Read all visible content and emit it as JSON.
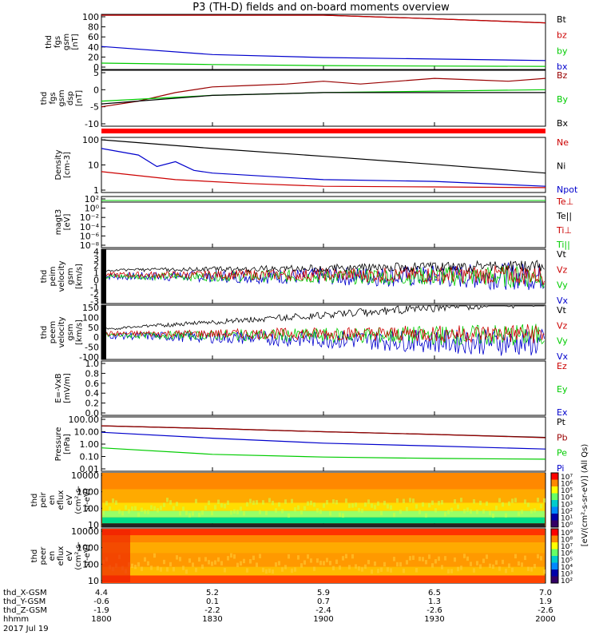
{
  "title": "P3 (TH-D) fields and on-board moments overview",
  "colors": {
    "black": "#000000",
    "red": "#cc0000",
    "blue": "#0000cc",
    "green": "#00cc00",
    "darkred": "#990000"
  },
  "chart_data": [
    {
      "type": "line",
      "panel": "fgs_gsm",
      "ylabel": [
        "thd",
        "fgs",
        "gsm",
        "[nT]"
      ],
      "ylim": [
        0,
        100
      ],
      "yticks": [
        "100",
        "80",
        "60",
        "40",
        "20",
        "0"
      ],
      "series": [
        {
          "name": "Bt",
          "color": "#000000",
          "x": [
            1800,
            1830,
            1900,
            1930,
            2000
          ],
          "values": [
            115,
            110,
            104,
            96,
            88
          ]
        },
        {
          "name": "bz",
          "color": "#cc0000",
          "x": [
            1800,
            1830,
            1900,
            1930,
            2000
          ],
          "values": [
            115,
            110,
            104,
            96,
            88
          ]
        },
        {
          "name": "by",
          "color": "#00cc00",
          "x": [
            1800,
            1830,
            1900,
            1930,
            2000
          ],
          "values": [
            8,
            5,
            3,
            2,
            1.5
          ]
        },
        {
          "name": "bx",
          "color": "#0000cc",
          "x": [
            1800,
            1830,
            1900,
            1930,
            2000
          ],
          "values": [
            41,
            25,
            19,
            16,
            13
          ]
        }
      ]
    },
    {
      "type": "line",
      "panel": "fgs_gsm_dsp",
      "ylabel": [
        "thd",
        "fgs",
        "gsm",
        "dsp",
        "[nT]"
      ],
      "ylim": [
        -12,
        6
      ],
      "yticks": [
        "5",
        "0",
        "-5",
        "-10"
      ],
      "series": [
        {
          "name": "Bz",
          "color": "#990000",
          "x": [
            1800,
            1810,
            1820,
            1830,
            1840,
            1850,
            1900,
            1910,
            1920,
            1930,
            1940,
            1950,
            2000
          ],
          "values": [
            -6,
            -4,
            -1,
            1,
            1.5,
            2,
            3,
            2,
            3,
            4,
            3.5,
            3,
            4
          ]
        },
        {
          "name": "By",
          "color": "#00cc00",
          "x": [
            1800,
            1830,
            1900,
            1930,
            2000
          ],
          "values": [
            -4,
            -2,
            -1,
            -0.5,
            0
          ]
        },
        {
          "name": "Bx",
          "color": "#000000",
          "x": [
            1800,
            1830,
            1900,
            1930,
            2000
          ],
          "values": [
            -5,
            -2,
            -1,
            -1,
            -1
          ]
        }
      ]
    },
    {
      "type": "line",
      "panel": "density",
      "ylabel": [
        "Density",
        "[cm-3]"
      ],
      "yscale": "log",
      "ylim": [
        1,
        200
      ],
      "yticks": [
        "100",
        "10",
        "1"
      ],
      "series": [
        {
          "name": "Ne",
          "color": "#cc0000",
          "x": [
            1800,
            1820,
            1840,
            1900,
            1930,
            2000
          ],
          "values": [
            7,
            3,
            2,
            1.5,
            1.4,
            1.3
          ]
        },
        {
          "name": "Ni",
          "color": "#000000",
          "x": [
            1800,
            1830,
            1900,
            1930,
            2000
          ],
          "values": [
            200,
            80,
            35,
            15,
            6
          ]
        },
        {
          "name": "Npot",
          "color": "#0000cc",
          "x": [
            1800,
            1810,
            1815,
            1820,
            1825,
            1830,
            1900,
            1930,
            2000
          ],
          "values": [
            80,
            40,
            12,
            20,
            8,
            6,
            3,
            2.5,
            1.5
          ]
        }
      ]
    },
    {
      "type": "line",
      "panel": "temperature",
      "ylabel": [
        "magt3",
        "[eV]"
      ],
      "yscale": "log",
      "yticks": [
        "10²",
        "10⁰",
        "10⁻²",
        "10⁻⁴",
        "10⁻⁶",
        "10⁻⁸"
      ],
      "series": [
        {
          "name": "Te⊥",
          "color": "#cc0000"
        },
        {
          "name": "Te||",
          "color": "#000000"
        },
        {
          "name": "Ti⊥",
          "color": "#cc0000"
        },
        {
          "name": "Ti||",
          "color": "#00cc00"
        }
      ]
    },
    {
      "type": "line",
      "panel": "peim_velocity",
      "ylabel": [
        "thd",
        "peim",
        "velocity",
        "gsm",
        "[km/s]"
      ],
      "ylim": [
        -4,
        4
      ],
      "yticks": [
        "4",
        "3",
        "2",
        "1",
        "0",
        "-1",
        "-2",
        "-3"
      ],
      "series": [
        {
          "name": "Vt",
          "color": "#000000"
        },
        {
          "name": "Vz",
          "color": "#cc0000"
        },
        {
          "name": "Vy",
          "color": "#00cc00"
        },
        {
          "name": "Vx",
          "color": "#0000cc"
        }
      ]
    },
    {
      "type": "line",
      "panel": "peem_velocity",
      "ylabel": [
        "thd",
        "peem",
        "velocity",
        "gsm",
        "[km/s]"
      ],
      "ylim": [
        -100,
        150
      ],
      "yticks": [
        "150",
        "100",
        "50",
        "0",
        "-50",
        "-100"
      ],
      "series": [
        {
          "name": "Vt",
          "color": "#000000"
        },
        {
          "name": "Vz",
          "color": "#cc0000"
        },
        {
          "name": "Vy",
          "color": "#00cc00"
        },
        {
          "name": "Vx",
          "color": "#0000cc"
        }
      ]
    },
    {
      "type": "line",
      "panel": "efield",
      "ylabel": [
        "E=-VxB",
        "[mV/m]"
      ],
      "ylim": [
        0,
        1
      ],
      "yticks": [
        "1.0",
        "0.8",
        "0.6",
        "0.4",
        "0.2",
        "0.0"
      ],
      "series": [
        {
          "name": "Ez",
          "color": "#cc0000"
        },
        {
          "name": "Ey",
          "color": "#00cc00"
        },
        {
          "name": "Ex",
          "color": "#0000cc"
        }
      ]
    },
    {
      "type": "line",
      "panel": "pressure",
      "ylabel": [
        "Pressure",
        "[nPa]"
      ],
      "yscale": "log",
      "ylim": [
        0.01,
        100
      ],
      "yticks": [
        "100.00",
        "10.00",
        "1.00",
        "0.10",
        "0.01"
      ],
      "series": [
        {
          "name": "Pt",
          "color": "#000000",
          "x": [
            1800,
            1830,
            1900,
            1930,
            2000
          ],
          "values": [
            30,
            18,
            10,
            6,
            3.5
          ]
        },
        {
          "name": "Pb",
          "color": "#990000",
          "x": [
            1800,
            1830,
            1900,
            1930,
            2000
          ],
          "values": [
            30,
            18,
            10,
            6,
            3.3
          ]
        },
        {
          "name": "Pe",
          "color": "#00cc00",
          "x": [
            1800,
            1830,
            1900,
            1930,
            2000
          ],
          "values": [
            0.5,
            0.15,
            0.09,
            0.07,
            0.06
          ]
        },
        {
          "name": "Pi",
          "color": "#0000cc",
          "x": [
            1800,
            1830,
            1900,
            1930,
            2000
          ],
          "values": [
            9,
            3,
            1.2,
            0.7,
            0.4
          ]
        }
      ]
    },
    {
      "type": "heatmap",
      "panel": "peir_en_eflux",
      "ylabel": [
        "thd",
        "peir",
        "en",
        "eflux",
        "eV",
        "(cm²-s-",
        "sr-eV)"
      ],
      "yscale": "log",
      "yticks": [
        "10000",
        "1000",
        "100",
        "10"
      ],
      "colorbar": {
        "label": "[eV/(cm²-s-sr-eV)] (All Qs)",
        "ticks": [
          "10⁷",
          "10⁶",
          "10⁵",
          "10⁴",
          "10³",
          "10²",
          "10¹",
          "10⁰"
        ]
      }
    },
    {
      "type": "heatmap",
      "panel": "peer_en_eflux",
      "ylabel": [
        "thd",
        "peer",
        "en",
        "eflux",
        "eV",
        "(cm²-s-",
        "sr-eV)"
      ],
      "yscale": "log",
      "yticks": [
        "10000",
        "1000",
        "100",
        "10"
      ],
      "colorbar": {
        "label": "[eV/(cm²-s-sr-eV)]",
        "ticks": [
          "10⁹",
          "10⁸",
          "10⁷",
          "10⁶",
          "10⁵",
          "10⁴",
          "10³",
          "10²"
        ]
      }
    }
  ],
  "xaxis": {
    "rows": [
      {
        "label": "thd_X-GSM",
        "values": [
          "4.4",
          "5.2",
          "5.9",
          "6.5",
          "7.0"
        ]
      },
      {
        "label": "thd_Y-GSM",
        "values": [
          "-0.6",
          "0.1",
          "0.7",
          "1.3",
          "1.9"
        ]
      },
      {
        "label": "thd_Z-GSM",
        "values": [
          "-1.9",
          "-2.2",
          "-2.4",
          "-2.6",
          "-2.6"
        ]
      },
      {
        "label": "hhmm",
        "values": [
          "1800",
          "1830",
          "1900",
          "1930",
          "2000"
        ]
      }
    ],
    "date": "2017 Jul 19"
  },
  "colorbar_label": "[eV/(cm²-s-sr-eV)] (All Qs)"
}
